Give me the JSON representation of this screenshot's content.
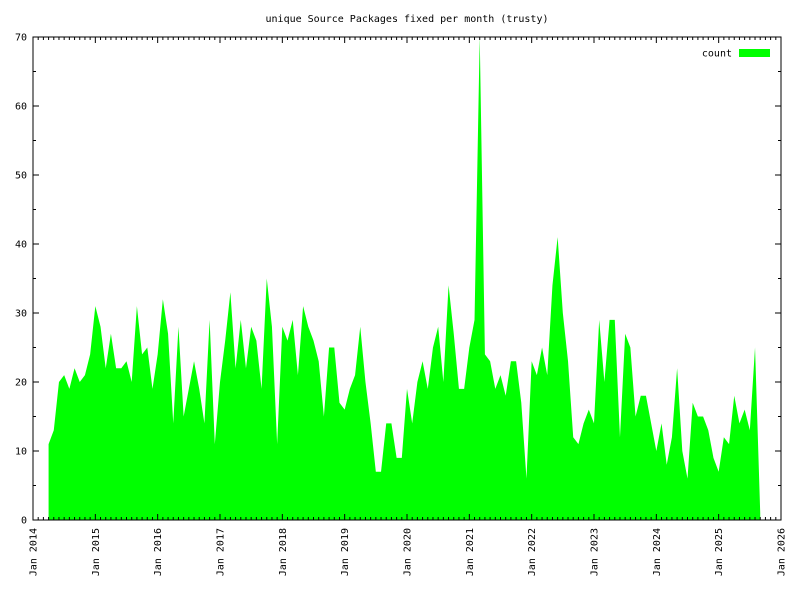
{
  "chart_data": {
    "type": "area",
    "title": "unique Source Packages fixed per month (trusty)",
    "legend_position": "top-right",
    "color": "#00ff00",
    "series": [
      {
        "name": "count",
        "color": "#00ff00",
        "values": [
          11,
          13,
          20,
          21,
          19,
          22,
          20,
          21,
          24,
          31,
          28,
          22,
          27,
          22,
          22,
          23,
          20,
          31,
          24,
          25,
          19,
          24,
          32,
          27,
          14,
          28,
          15,
          19,
          23,
          19,
          14,
          29,
          11,
          20,
          26,
          33,
          22,
          29,
          22,
          28,
          26,
          19,
          35,
          28,
          11,
          28,
          26,
          29,
          21,
          31,
          28,
          26,
          23,
          15,
          25,
          25,
          17,
          16,
          19,
          21,
          28,
          20,
          14,
          7,
          7,
          14,
          14,
          9,
          9,
          19,
          14,
          20,
          23,
          19,
          25,
          28,
          20,
          34,
          27,
          19,
          19,
          25,
          29,
          70,
          24,
          23,
          19,
          21,
          18,
          23,
          23,
          17,
          6,
          23,
          21,
          25,
          21,
          34,
          41,
          30,
          23,
          12,
          11,
          14,
          16,
          14,
          29,
          20,
          29,
          29,
          12,
          27,
          25,
          15,
          18,
          18,
          14,
          10,
          14,
          8,
          12,
          22,
          10,
          6,
          17,
          15,
          15,
          13,
          9,
          7,
          12,
          11,
          18,
          14,
          16,
          13,
          25,
          1
        ]
      }
    ],
    "x": [
      "2014-04",
      "2014-05",
      "2014-06",
      "2014-07",
      "2014-08",
      "2014-09",
      "2014-10",
      "2014-11",
      "2014-12",
      "2015-01",
      "2015-02",
      "2015-03",
      "2015-04",
      "2015-05",
      "2015-06",
      "2015-07",
      "2015-08",
      "2015-09",
      "2015-10",
      "2015-11",
      "2015-12",
      "2016-01",
      "2016-02",
      "2016-03",
      "2016-04",
      "2016-05",
      "2016-06",
      "2016-07",
      "2016-08",
      "2016-09",
      "2016-10",
      "2016-11",
      "2016-12",
      "2017-01",
      "2017-02",
      "2017-03",
      "2017-04",
      "2017-05",
      "2017-06",
      "2017-07",
      "2017-08",
      "2017-09",
      "2017-10",
      "2017-11",
      "2017-12",
      "2018-01",
      "2018-02",
      "2018-03",
      "2018-04",
      "2018-05",
      "2018-06",
      "2018-07",
      "2018-08",
      "2018-09",
      "2018-10",
      "2018-11",
      "2018-12",
      "2019-01",
      "2019-02",
      "2019-03",
      "2019-04",
      "2019-05",
      "2019-06",
      "2019-07",
      "2019-08",
      "2019-09",
      "2019-10",
      "2019-11",
      "2019-12",
      "2020-01",
      "2020-02",
      "2020-03",
      "2020-04",
      "2020-05",
      "2020-06",
      "2020-07",
      "2020-08",
      "2020-09",
      "2020-10",
      "2020-11",
      "2020-12",
      "2021-01",
      "2021-02",
      "2021-03",
      "2021-04",
      "2021-05",
      "2021-06",
      "2021-07",
      "2021-08",
      "2021-09",
      "2021-10",
      "2021-11",
      "2021-12",
      "2022-01",
      "2022-02",
      "2022-03",
      "2022-04",
      "2022-05",
      "2022-06",
      "2022-07",
      "2022-08",
      "2022-09",
      "2022-10",
      "2022-11",
      "2022-12",
      "2023-01",
      "2023-02",
      "2023-03",
      "2023-04",
      "2023-05",
      "2023-06",
      "2023-07",
      "2023-08",
      "2023-09",
      "2023-10",
      "2023-11",
      "2023-12",
      "2024-01",
      "2024-02",
      "2024-03",
      "2024-04",
      "2024-05",
      "2024-06",
      "2024-07",
      "2024-08",
      "2024-09",
      "2024-10",
      "2024-11",
      "2024-12",
      "2025-01",
      "2025-02",
      "2025-03",
      "2025-04",
      "2025-05",
      "2025-06",
      "2025-07",
      "2025-08",
      "2025-09"
    ],
    "xlim": [
      "2014-01",
      "2026-01"
    ],
    "xticks": [
      {
        "value": "2014-01",
        "label": "Jan 2014"
      },
      {
        "value": "2015-01",
        "label": "Jan 2015"
      },
      {
        "value": "2016-01",
        "label": "Jan 2016"
      },
      {
        "value": "2017-01",
        "label": "Jan 2017"
      },
      {
        "value": "2018-01",
        "label": "Jan 2018"
      },
      {
        "value": "2019-01",
        "label": "Jan 2019"
      },
      {
        "value": "2020-01",
        "label": "Jan 2020"
      },
      {
        "value": "2021-01",
        "label": "Jan 2021"
      },
      {
        "value": "2022-01",
        "label": "Jan 2022"
      },
      {
        "value": "2023-01",
        "label": "Jan 2023"
      },
      {
        "value": "2024-01",
        "label": "Jan 2024"
      },
      {
        "value": "2025-01",
        "label": "Jan 2025"
      },
      {
        "value": "2026-01",
        "label": "Jan 2026"
      }
    ],
    "ylim": [
      0,
      70
    ],
    "yticks": [
      0,
      10,
      20,
      30,
      40,
      50,
      60,
      70
    ]
  }
}
